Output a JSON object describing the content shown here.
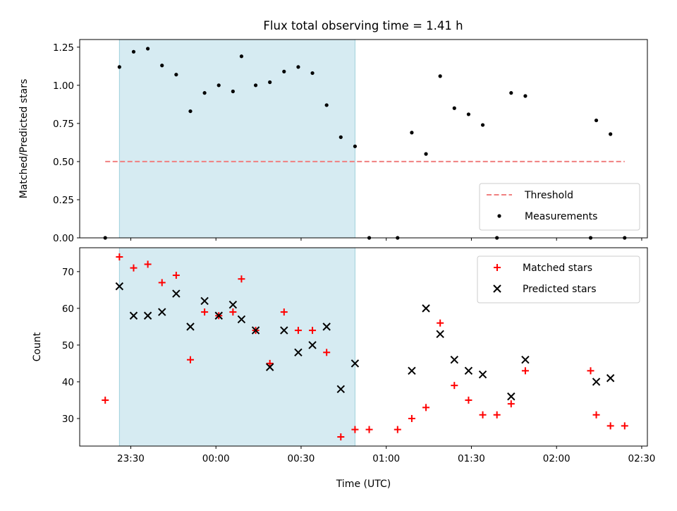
{
  "chart_data": [
    {
      "type": "scatter",
      "title": "Flux total observing time = 1.41 h",
      "ylabel": "Matched/Predicted stars",
      "ylim": [
        0,
        1.3
      ],
      "yticks": [
        "0.00",
        "0.25",
        "0.50",
        "0.75",
        "1.00",
        "1.25"
      ],
      "xlim": [
        "23:12",
        "02:32"
      ],
      "shaded_span": [
        "23:26",
        "00:49"
      ],
      "threshold": {
        "name": "Threshold",
        "y": 0.5,
        "x_range": [
          "23:21",
          "02:24"
        ],
        "color": "#f08080",
        "style": "dashed"
      },
      "series": [
        {
          "name": "Measurements",
          "marker": "dot",
          "color": "#000000",
          "points": [
            [
              "23:21",
              0.0
            ],
            [
              "23:26",
              1.12
            ],
            [
              "23:31",
              1.22
            ],
            [
              "23:36",
              1.24
            ],
            [
              "23:41",
              1.13
            ],
            [
              "23:46",
              1.07
            ],
            [
              "23:51",
              0.83
            ],
            [
              "23:56",
              0.95
            ],
            [
              "00:01",
              1.0
            ],
            [
              "00:06",
              0.96
            ],
            [
              "00:09",
              1.19
            ],
            [
              "00:14",
              1.0
            ],
            [
              "00:19",
              1.02
            ],
            [
              "00:24",
              1.09
            ],
            [
              "00:29",
              1.12
            ],
            [
              "00:34",
              1.08
            ],
            [
              "00:39",
              0.87
            ],
            [
              "00:44",
              0.66
            ],
            [
              "00:49",
              0.6
            ],
            [
              "00:54",
              0.0
            ],
            [
              "01:04",
              0.0
            ],
            [
              "01:09",
              0.69
            ],
            [
              "01:14",
              0.55
            ],
            [
              "01:19",
              1.06
            ],
            [
              "01:24",
              0.85
            ],
            [
              "01:29",
              0.81
            ],
            [
              "01:34",
              0.74
            ],
            [
              "01:39",
              0.0
            ],
            [
              "01:44",
              0.95
            ],
            [
              "01:49",
              0.93
            ],
            [
              "02:12",
              0.0
            ],
            [
              "02:14",
              0.77
            ],
            [
              "02:19",
              0.68
            ],
            [
              "02:24",
              0.0
            ]
          ]
        }
      ],
      "legend": {
        "placement": "lower-right",
        "entries": [
          "Threshold",
          "Measurements"
        ]
      }
    },
    {
      "type": "scatter",
      "xlabel": "Time (UTC)",
      "ylabel": "Count",
      "ylim": [
        22.5,
        76.5
      ],
      "yticks": [
        "30",
        "40",
        "50",
        "60",
        "70"
      ],
      "xlim": [
        "23:12",
        "02:32"
      ],
      "xticks": [
        "23:30",
        "00:00",
        "00:30",
        "01:00",
        "01:30",
        "02:00",
        "02:30"
      ],
      "shaded_span": [
        "23:26",
        "00:49"
      ],
      "series": [
        {
          "name": "Matched stars",
          "marker": "plus",
          "color": "#ff0000",
          "points": [
            [
              "23:21",
              35
            ],
            [
              "23:26",
              74
            ],
            [
              "23:31",
              71
            ],
            [
              "23:36",
              72
            ],
            [
              "23:41",
              67
            ],
            [
              "23:46",
              69
            ],
            [
              "23:51",
              46
            ],
            [
              "23:56",
              59
            ],
            [
              "00:01",
              58
            ],
            [
              "00:06",
              59
            ],
            [
              "00:09",
              68
            ],
            [
              "00:14",
              54
            ],
            [
              "00:19",
              45
            ],
            [
              "00:24",
              59
            ],
            [
              "00:29",
              54
            ],
            [
              "00:34",
              54
            ],
            [
              "00:39",
              48
            ],
            [
              "00:44",
              25
            ],
            [
              "00:49",
              27
            ],
            [
              "00:54",
              27
            ],
            [
              "01:04",
              27
            ],
            [
              "01:09",
              30
            ],
            [
              "01:14",
              33
            ],
            [
              "01:19",
              56
            ],
            [
              "01:24",
              39
            ],
            [
              "01:29",
              35
            ],
            [
              "01:34",
              31
            ],
            [
              "01:39",
              31
            ],
            [
              "01:44",
              34
            ],
            [
              "01:49",
              43
            ],
            [
              "02:12",
              43
            ],
            [
              "02:14",
              31
            ],
            [
              "02:19",
              28
            ],
            [
              "02:24",
              28
            ]
          ]
        },
        {
          "name": "Predicted stars",
          "marker": "x",
          "color": "#000000",
          "points": [
            [
              "23:26",
              66
            ],
            [
              "23:31",
              58
            ],
            [
              "23:36",
              58
            ],
            [
              "23:41",
              59
            ],
            [
              "23:46",
              64
            ],
            [
              "23:51",
              55
            ],
            [
              "23:56",
              62
            ],
            [
              "00:01",
              58
            ],
            [
              "00:06",
              61
            ],
            [
              "00:09",
              57
            ],
            [
              "00:14",
              54
            ],
            [
              "00:19",
              44
            ],
            [
              "00:24",
              54
            ],
            [
              "00:29",
              48
            ],
            [
              "00:34",
              50
            ],
            [
              "00:39",
              55
            ],
            [
              "00:44",
              38
            ],
            [
              "00:49",
              45
            ],
            [
              "01:09",
              43
            ],
            [
              "01:14",
              60
            ],
            [
              "01:19",
              53
            ],
            [
              "01:24",
              46
            ],
            [
              "01:29",
              43
            ],
            [
              "01:34",
              42
            ],
            [
              "01:44",
              36
            ],
            [
              "01:49",
              46
            ],
            [
              "02:14",
              40
            ],
            [
              "02:19",
              41
            ]
          ]
        }
      ],
      "legend": {
        "placement": "upper-right",
        "entries": [
          "Matched stars",
          "Predicted stars"
        ]
      }
    }
  ]
}
